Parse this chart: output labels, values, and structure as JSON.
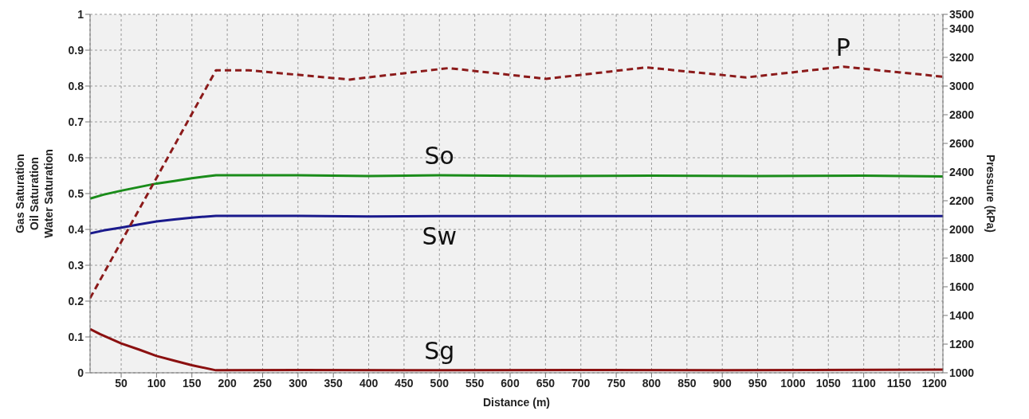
{
  "chart_data": {
    "type": "line",
    "xlabel": "Distance (m)",
    "ylabel": "Gas Saturation\nOil Saturation\nWater Saturation",
    "y2label": "Pressure (kPa)",
    "xlim": [
      6,
      1212
    ],
    "xticks": [
      50,
      100,
      150,
      200,
      250,
      300,
      350,
      400,
      450,
      500,
      550,
      600,
      650,
      700,
      750,
      800,
      850,
      900,
      950,
      1000,
      1050,
      1100,
      1150,
      1200
    ],
    "ylim": [
      0,
      1
    ],
    "yticks": [
      0,
      0.1,
      0.2,
      0.3,
      0.4,
      0.5,
      0.6,
      0.7,
      0.8,
      0.9,
      1
    ],
    "y2lim": [
      1000,
      3500
    ],
    "y2ticks": [
      1000,
      1200,
      1400,
      1600,
      1800,
      2000,
      2200,
      2400,
      2600,
      2800,
      3000,
      3200,
      3400,
      3500
    ],
    "grid": true,
    "line_style": "solid",
    "marker": "none",
    "series": [
      {
        "name": "So",
        "color": "#1a8c1a",
        "x": [
          6,
          25,
          50,
          75,
          100,
          125,
          150,
          184,
          300,
          400,
          500,
          650,
          800,
          950,
          1100,
          1212
        ],
        "values": [
          0.486,
          0.497,
          0.508,
          0.518,
          0.528,
          0.535,
          0.543,
          0.551,
          0.551,
          0.549,
          0.551,
          0.549,
          0.55,
          0.549,
          0.55,
          0.548
        ]
      },
      {
        "name": "Sw",
        "color": "#1a1a8c",
        "x": [
          6,
          25,
          50,
          75,
          100,
          125,
          150,
          184,
          300,
          400,
          500,
          700,
          1212
        ],
        "values": [
          0.389,
          0.397,
          0.405,
          0.414,
          0.422,
          0.428,
          0.433,
          0.438,
          0.438,
          0.436,
          0.437,
          0.437,
          0.437
        ]
      },
      {
        "name": "Sg",
        "color": "#8b1010",
        "x": [
          6,
          20,
          50,
          75,
          100,
          125,
          150,
          184,
          300,
          500,
          700,
          900,
          1212
        ],
        "values": [
          0.122,
          0.108,
          0.082,
          0.065,
          0.047,
          0.034,
          0.021,
          0.007,
          0.008,
          0.007,
          0.008,
          0.007,
          0.009
        ]
      },
      {
        "name": "P",
        "color": "#8b1a1a",
        "axis": "y2",
        "line_style": "dashed",
        "x": [
          6,
          184,
          230,
          373,
          513,
          651,
          792,
          934,
          1071,
          1212
        ],
        "values": [
          1520,
          3110,
          3110,
          3045,
          3125,
          3050,
          3130,
          3060,
          3135,
          3065
        ]
      }
    ]
  }
}
